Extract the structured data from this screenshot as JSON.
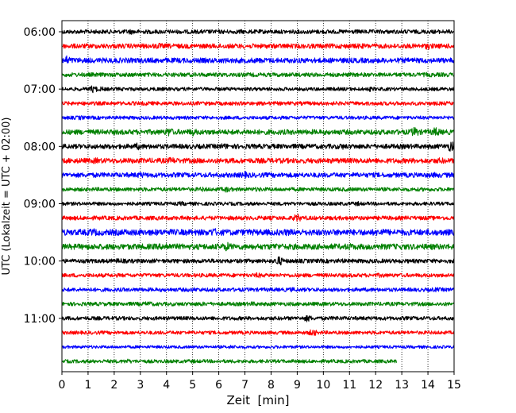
{
  "chart_data": {
    "type": "line",
    "title": "",
    "xlabel": "Zeit  [min]",
    "ylabel": "UTC (Lokalzeit = UTC + 02:00)",
    "xlim": [
      0,
      15
    ],
    "xticks": [
      0,
      1,
      2,
      3,
      4,
      5,
      6,
      7,
      8,
      9,
      10,
      11,
      12,
      13,
      14,
      15
    ],
    "ytick_labels": [
      "06:00",
      "07:00",
      "08:00",
      "09:00",
      "10:00",
      "11:00"
    ],
    "grid": "vertical dotted",
    "colors": [
      "#000000",
      "#ff0000",
      "#0000ff",
      "#008000"
    ],
    "series": [
      {
        "start": "06:00",
        "color": "#000000",
        "x_end": 15,
        "amplitude": 2.6,
        "events": [
          [
            2.6,
            3.5
          ],
          [
            4.1,
            2.5
          ],
          [
            6.8,
            3.0
          ],
          [
            10.0,
            2.8
          ]
        ]
      },
      {
        "start": "06:15",
        "color": "#ff0000",
        "x_end": 15,
        "amplitude": 3.0,
        "events": [
          [
            3.7,
            4.0
          ],
          [
            8.5,
            3.0
          ],
          [
            11.4,
            3.5
          ],
          [
            14.0,
            4.2
          ]
        ]
      },
      {
        "start": "06:30",
        "color": "#0000ff",
        "x_end": 15,
        "amplitude": 3.2,
        "events": [
          [
            0.2,
            6.0
          ],
          [
            2.0,
            3.5
          ],
          [
            4.0,
            3.0
          ],
          [
            7.5,
            3.5
          ],
          [
            10.5,
            3.0
          ]
        ]
      },
      {
        "start": "06:45",
        "color": "#008000",
        "x_end": 15,
        "amplitude": 2.6,
        "events": [
          [
            1.5,
            2.5
          ],
          [
            5.3,
            2.5
          ],
          [
            14.0,
            3.0
          ]
        ]
      },
      {
        "start": "07:00",
        "color": "#000000",
        "x_end": 15,
        "amplitude": 2.2,
        "events": [
          [
            1.2,
            5.0
          ],
          [
            1.5,
            3.0
          ],
          [
            3.7,
            2.5
          ],
          [
            11.8,
            3.0
          ]
        ]
      },
      {
        "start": "07:15",
        "color": "#ff0000",
        "x_end": 15,
        "amplitude": 2.4,
        "events": [
          [
            3.2,
            3.0
          ],
          [
            6.0,
            2.5
          ]
        ]
      },
      {
        "start": "07:30",
        "color": "#0000ff",
        "x_end": 15,
        "amplitude": 2.2,
        "events": [
          [
            0.7,
            3.0
          ],
          [
            7.0,
            2.5
          ],
          [
            14.8,
            2.5
          ]
        ]
      },
      {
        "start": "07:45",
        "color": "#008000",
        "x_end": 15,
        "amplitude": 3.2,
        "events": [
          [
            4.1,
            6.0
          ],
          [
            5.0,
            5.0
          ],
          [
            7.2,
            4.0
          ],
          [
            13.5,
            6.5
          ],
          [
            14.3,
            6.0
          ]
        ]
      },
      {
        "start": "08:00",
        "color": "#000000",
        "x_end": 15,
        "amplitude": 3.0,
        "events": [
          [
            2.9,
            4.5
          ],
          [
            6.2,
            4.0
          ],
          [
            10.7,
            4.0
          ],
          [
            14.9,
            7.5
          ]
        ]
      },
      {
        "start": "08:15",
        "color": "#ff0000",
        "x_end": 15,
        "amplitude": 3.2,
        "events": [
          [
            1.3,
            4.0
          ],
          [
            4.2,
            4.5
          ],
          [
            6.8,
            3.0
          ],
          [
            14.5,
            4.0
          ]
        ]
      },
      {
        "start": "08:30",
        "color": "#0000ff",
        "x_end": 15,
        "amplitude": 3.0,
        "events": [
          [
            3.0,
            4.0
          ],
          [
            7.0,
            4.5
          ],
          [
            14.3,
            3.5
          ]
        ]
      },
      {
        "start": "08:45",
        "color": "#008000",
        "x_end": 15,
        "amplitude": 2.4,
        "events": [
          [
            5.4,
            3.0
          ],
          [
            6.3,
            4.0
          ],
          [
            7.5,
            3.0
          ]
        ]
      },
      {
        "start": "09:00",
        "color": "#000000",
        "x_end": 15,
        "amplitude": 2.2,
        "events": [
          [
            4.6,
            3.0
          ],
          [
            11.3,
            3.0
          ]
        ]
      },
      {
        "start": "09:15",
        "color": "#ff0000",
        "x_end": 15,
        "amplitude": 2.6,
        "events": [
          [
            9.0,
            5.5
          ],
          [
            11.0,
            3.0
          ]
        ]
      },
      {
        "start": "09:30",
        "color": "#0000ff",
        "x_end": 15,
        "amplitude": 3.8,
        "events": [
          [
            1.2,
            5.0
          ],
          [
            5.8,
            5.5
          ],
          [
            8.6,
            4.5
          ],
          [
            12.2,
            5.0
          ]
        ]
      },
      {
        "start": "09:45",
        "color": "#008000",
        "x_end": 15,
        "amplitude": 3.6,
        "events": [
          [
            4.0,
            5.5
          ],
          [
            6.3,
            6.0
          ],
          [
            8.2,
            4.5
          ],
          [
            11.0,
            4.5
          ]
        ]
      },
      {
        "start": "10:00",
        "color": "#000000",
        "x_end": 15,
        "amplitude": 2.6,
        "events": [
          [
            2.2,
            3.5
          ],
          [
            5.6,
            3.0
          ],
          [
            8.3,
            6.5
          ],
          [
            10.7,
            3.0
          ]
        ]
      },
      {
        "start": "10:15",
        "color": "#ff0000",
        "x_end": 15,
        "amplitude": 2.4,
        "events": [
          [
            7.5,
            3.5
          ],
          [
            12.2,
            3.0
          ]
        ]
      },
      {
        "start": "10:30",
        "color": "#0000ff",
        "x_end": 15,
        "amplitude": 2.4,
        "events": [
          [
            5.0,
            3.0
          ],
          [
            8.8,
            3.0
          ],
          [
            14.3,
            3.0
          ]
        ]
      },
      {
        "start": "10:45",
        "color": "#008000",
        "x_end": 15,
        "amplitude": 2.4,
        "events": [
          [
            3.3,
            3.5
          ],
          [
            5.3,
            3.0
          ],
          [
            7.3,
            3.0
          ]
        ]
      },
      {
        "start": "11:00",
        "color": "#000000",
        "x_end": 15,
        "amplitude": 2.4,
        "events": [
          [
            9.4,
            4.5
          ],
          [
            10.5,
            3.0
          ]
        ]
      },
      {
        "start": "11:15",
        "color": "#ff0000",
        "x_end": 15,
        "amplitude": 2.2,
        "events": [
          [
            9.6,
            5.0
          ]
        ]
      },
      {
        "start": "11:30",
        "color": "#0000ff",
        "x_end": 15,
        "amplitude": 1.8,
        "events": [
          [
            6.5,
            2.5
          ]
        ]
      },
      {
        "start": "11:45",
        "color": "#008000",
        "x_end": 12.8,
        "amplitude": 2.2,
        "events": [
          [
            2.5,
            3.0
          ],
          [
            5.0,
            2.5
          ]
        ]
      }
    ]
  }
}
